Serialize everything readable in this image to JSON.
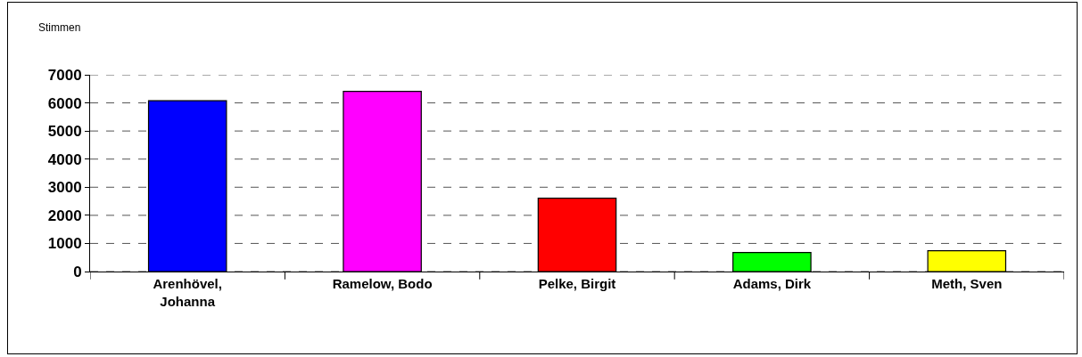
{
  "chart_data": {
    "type": "bar",
    "ylabel": "Stimmen",
    "categories": [
      "Arenhövel, Johanna",
      "Ramelow, Bodo",
      "Pelke, Birgit",
      "Adams, Dirk",
      "Meth, Sven"
    ],
    "values": [
      6080,
      6410,
      2610,
      680,
      740
    ],
    "colors": [
      "#0000ff",
      "#ff00ff",
      "#ff0000",
      "#00ff00",
      "#ffff00"
    ],
    "ylim": [
      0,
      7000
    ],
    "yticks": [
      0,
      1000,
      2000,
      3000,
      4000,
      5000,
      6000,
      7000
    ],
    "grid": "y"
  }
}
